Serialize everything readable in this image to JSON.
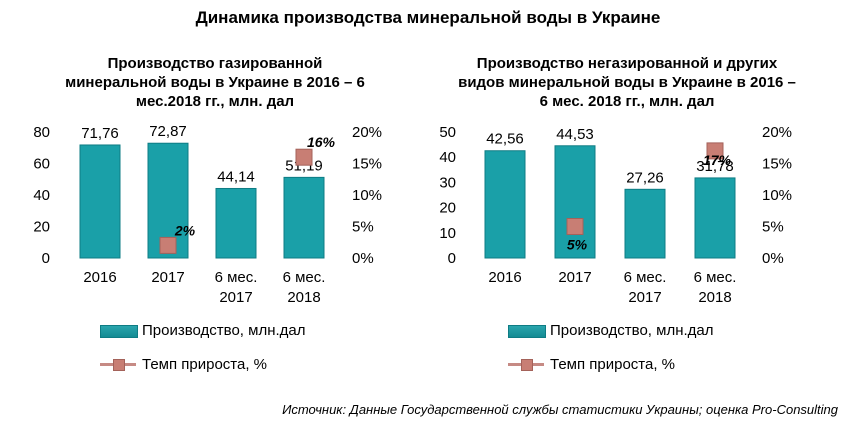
{
  "title": "Динамика производства минеральной воды в Украине",
  "source": "Источник: Данные Государственной службы статистики Украины; оценка Pro-Consulting",
  "colors": {
    "bar": "#1aa0a8",
    "bar_stroke": "#0e7c84",
    "marker": "#c87e74"
  },
  "chart_data": [
    {
      "type": "bar",
      "title_lines": [
        "Производство  газированной",
        "минеральной  воды в Украине в 2016 – 6",
        "мес.2018  гг., млн. дал"
      ],
      "categories": [
        [
          "2016"
        ],
        [
          "2017"
        ],
        [
          "6 мес.",
          "2017"
        ],
        [
          "6 мес.",
          "2018"
        ]
      ],
      "series": [
        {
          "name": "Производство,  млн.дал",
          "type": "bar",
          "values": [
            71.76,
            72.87,
            44.14,
            51.19
          ],
          "labels": [
            "71,76",
            "72,87",
            "44,14",
            "51,19"
          ]
        },
        {
          "name": "Темп  прироста,  %",
          "type": "marker",
          "axis": "right",
          "values": [
            null,
            2,
            null,
            16
          ],
          "labels": [
            "",
            "2%",
            "",
            "16%"
          ]
        }
      ],
      "left_axis": {
        "ylim": [
          0,
          80
        ],
        "ticks": [
          0,
          20,
          40,
          60,
          80
        ]
      },
      "right_axis": {
        "ylim": [
          0,
          20
        ],
        "ticks": [
          "0%",
          "5%",
          "10%",
          "15%",
          "20%"
        ]
      },
      "legend": "bottom"
    },
    {
      "type": "bar",
      "title_lines": [
        "Производство  негазированной  и других",
        "видов минеральной  воды в Украине в 2016 –",
        "6 мес. 2018  гг., млн. дал"
      ],
      "categories": [
        [
          "2016"
        ],
        [
          "2017"
        ],
        [
          "6 мес.",
          "2017"
        ],
        [
          "6 мес.",
          "2018"
        ]
      ],
      "series": [
        {
          "name": "Производство,  млн.дал",
          "type": "bar",
          "values": [
            42.56,
            44.53,
            27.26,
            31.78
          ],
          "labels": [
            "42,56",
            "44,53",
            "27,26",
            "31,78"
          ]
        },
        {
          "name": "Темп  прироста,  %",
          "type": "marker",
          "axis": "right",
          "values": [
            null,
            5,
            null,
            17
          ],
          "labels": [
            "",
            "5%",
            "",
            "17%"
          ]
        }
      ],
      "left_axis": {
        "ylim": [
          0,
          50
        ],
        "ticks": [
          0,
          10,
          20,
          30,
          40,
          50
        ]
      },
      "right_axis": {
        "ylim": [
          0,
          20
        ],
        "ticks": [
          "0%",
          "5%",
          "10%",
          "15%",
          "20%"
        ]
      },
      "legend": "bottom"
    }
  ]
}
